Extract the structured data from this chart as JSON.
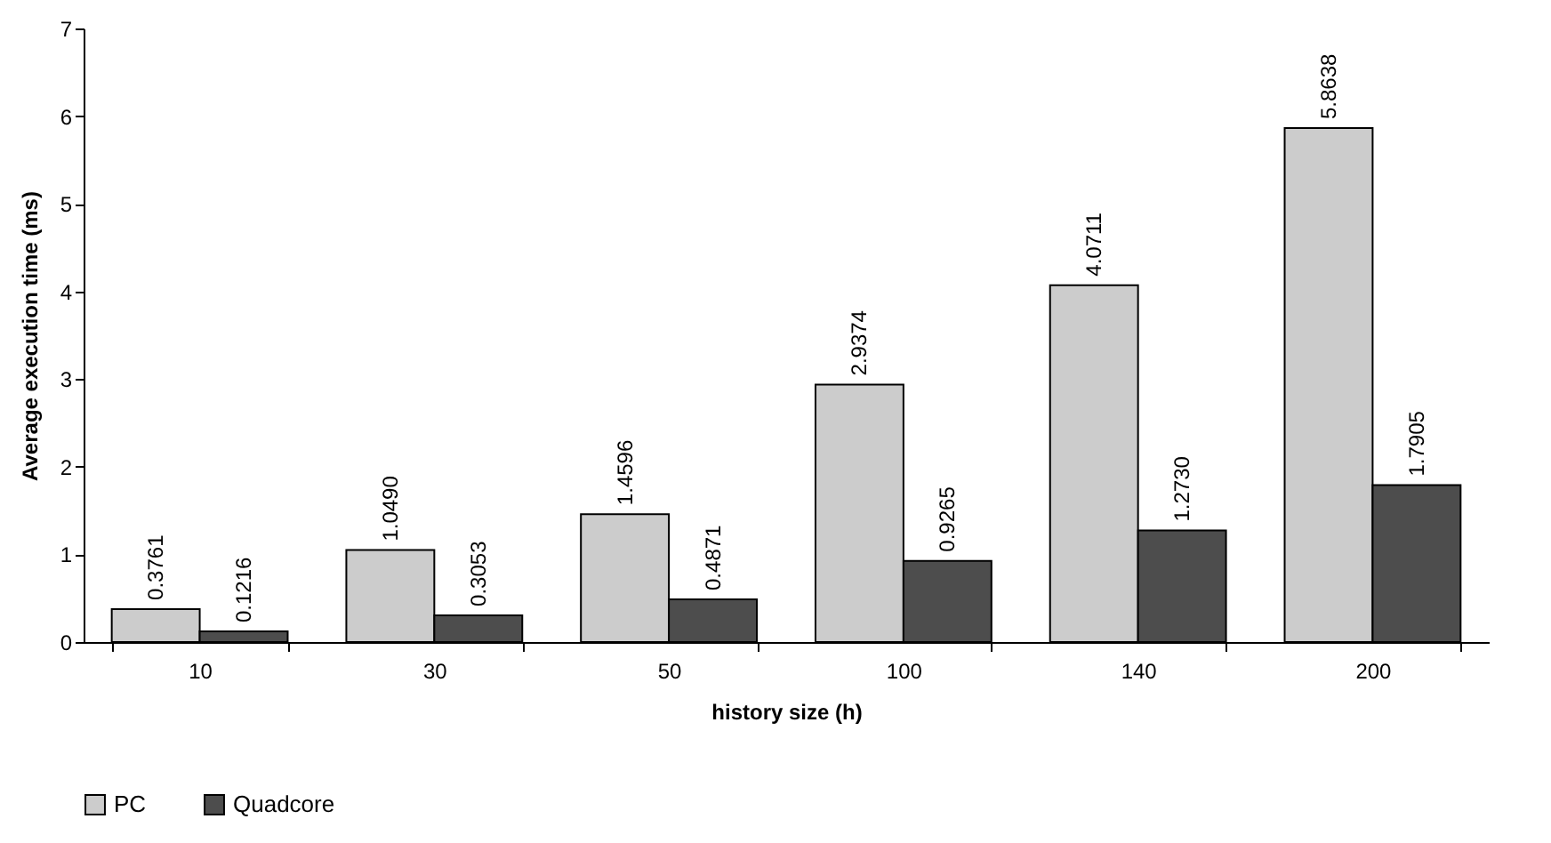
{
  "chart_data": {
    "type": "bar",
    "xlabel": "history size (h)",
    "ylabel": "Average execution time (ms)",
    "categories": [
      "10",
      "30",
      "50",
      "100",
      "140",
      "200"
    ],
    "series": [
      {
        "name": "PC",
        "color": "#cccccc",
        "values": [
          0.3761,
          1.049,
          1.4596,
          2.9374,
          4.0711,
          5.8638
        ],
        "value_labels": [
          "0.3761",
          "1.0490",
          "1.4596",
          "2.9374",
          "4.0711",
          "5.8638"
        ]
      },
      {
        "name": "Quadcore",
        "color": "#4d4d4d",
        "values": [
          0.1216,
          0.3053,
          0.4871,
          0.9265,
          1.273,
          1.7905
        ],
        "value_labels": [
          "0.1216",
          "0.3053",
          "0.4871",
          "0.9265",
          "1.2730",
          "1.7905"
        ]
      }
    ],
    "ylim": [
      0,
      7
    ],
    "yticks": [
      0,
      1,
      2,
      3,
      4,
      5,
      6,
      7
    ],
    "grid": false,
    "legend": "bottom"
  }
}
